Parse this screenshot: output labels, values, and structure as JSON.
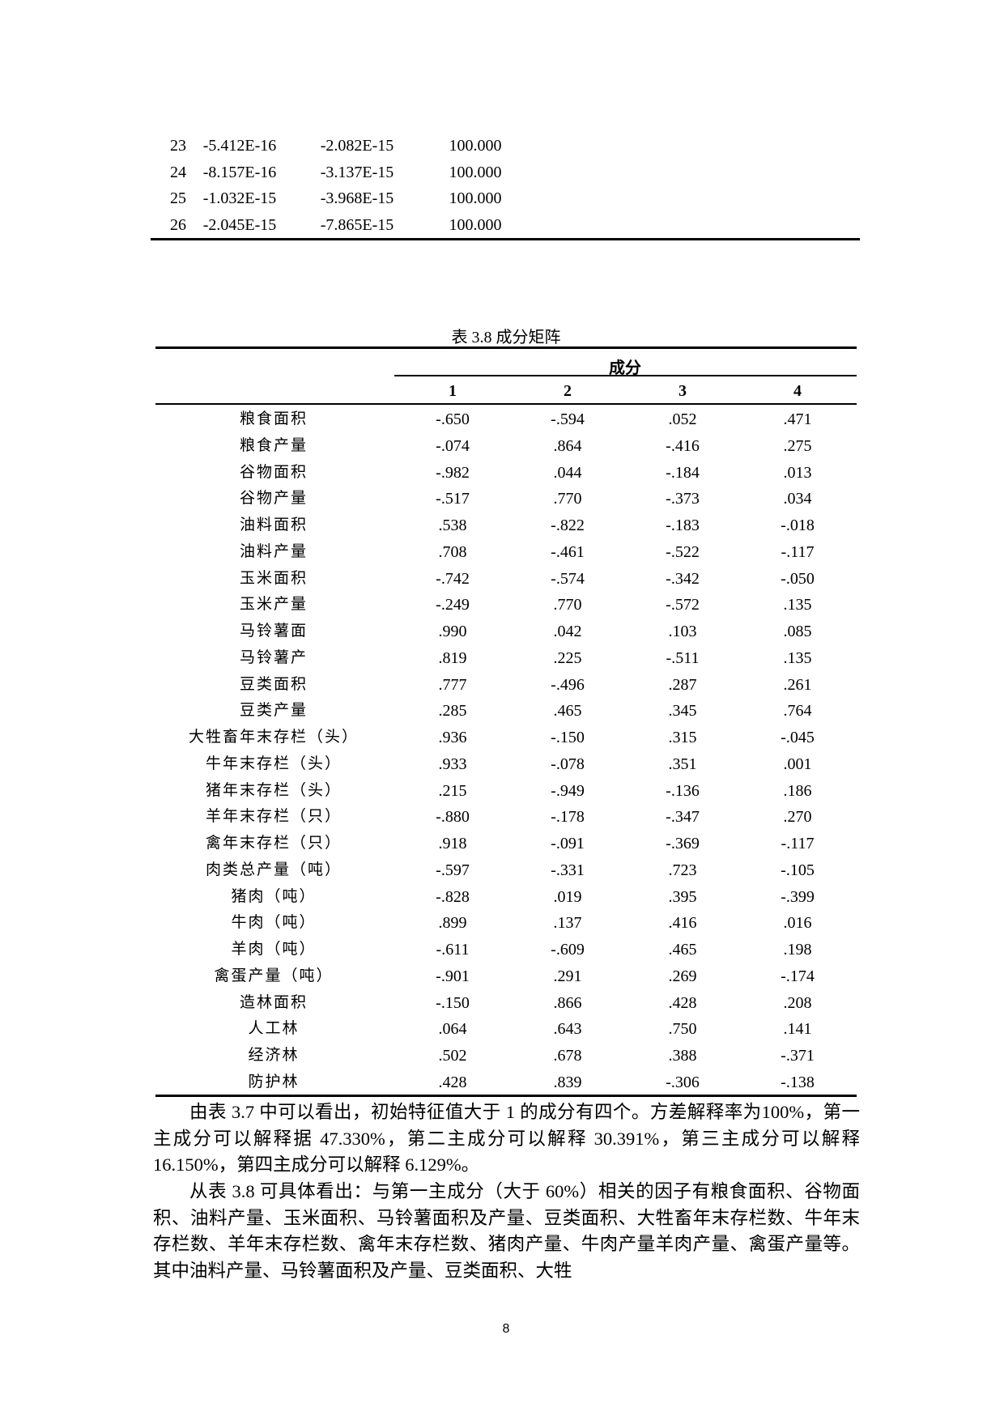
{
  "previous_table": {
    "rows": [
      [
        "23",
        "-5.412E-16",
        "-2.082E-15",
        "100.000"
      ],
      [
        "24",
        "-8.157E-16",
        "-3.137E-15",
        "100.000"
      ],
      [
        "25",
        "-1.032E-15",
        "-3.968E-15",
        "100.000"
      ],
      [
        "26",
        "-2.045E-15",
        "-7.865E-15",
        "100.000"
      ]
    ]
  },
  "table": {
    "caption": "表 3.8  成分矩阵",
    "group_header": "成分",
    "columns": [
      "1",
      "2",
      "3",
      "4"
    ],
    "rows": [
      {
        "label": "粮食面积",
        "values": [
          "-.650",
          "-.594",
          ".052",
          ".471"
        ]
      },
      {
        "label": "粮食产量",
        "values": [
          "-.074",
          ".864",
          "-.416",
          ".275"
        ]
      },
      {
        "label": "谷物面积",
        "values": [
          "-.982",
          ".044",
          "-.184",
          ".013"
        ]
      },
      {
        "label": "谷物产量",
        "values": [
          "-.517",
          ".770",
          "-.373",
          ".034"
        ]
      },
      {
        "label": "油料面积",
        "values": [
          ".538",
          "-.822",
          "-.183",
          "-.018"
        ]
      },
      {
        "label": "油料产量",
        "values": [
          ".708",
          "-.461",
          "-.522",
          "-.117"
        ]
      },
      {
        "label": "玉米面积",
        "values": [
          "-.742",
          "-.574",
          "-.342",
          "-.050"
        ]
      },
      {
        "label": "玉米产量",
        "values": [
          "-.249",
          ".770",
          "-.572",
          ".135"
        ]
      },
      {
        "label": "马铃薯面",
        "values": [
          ".990",
          ".042",
          ".103",
          ".085"
        ]
      },
      {
        "label": "马铃薯产",
        "values": [
          ".819",
          ".225",
          "-.511",
          ".135"
        ]
      },
      {
        "label": "豆类面积",
        "values": [
          ".777",
          "-.496",
          ".287",
          ".261"
        ]
      },
      {
        "label": "豆类产量",
        "values": [
          ".285",
          ".465",
          ".345",
          ".764"
        ]
      },
      {
        "label": "大牲畜年末存栏（头）",
        "values": [
          ".936",
          "-.150",
          ".315",
          "-.045"
        ]
      },
      {
        "label": "牛年末存栏（头）",
        "values": [
          ".933",
          "-.078",
          ".351",
          ".001"
        ]
      },
      {
        "label": "猪年末存栏（头）",
        "values": [
          ".215",
          "-.949",
          "-.136",
          ".186"
        ]
      },
      {
        "label": "羊年末存栏（只）",
        "values": [
          "-.880",
          "-.178",
          "-.347",
          ".270"
        ]
      },
      {
        "label": "禽年末存栏（只）",
        "values": [
          ".918",
          "-.091",
          "-.369",
          "-.117"
        ]
      },
      {
        "label": "肉类总产量（吨）",
        "values": [
          "-.597",
          "-.331",
          ".723",
          "-.105"
        ]
      },
      {
        "label": "猪肉（吨）",
        "values": [
          "-.828",
          ".019",
          ".395",
          "-.399"
        ]
      },
      {
        "label": "牛肉（吨）",
        "values": [
          ".899",
          ".137",
          ".416",
          ".016"
        ]
      },
      {
        "label": "羊肉（吨）",
        "values": [
          "-.611",
          "-.609",
          ".465",
          ".198"
        ]
      },
      {
        "label": "禽蛋产量（吨）",
        "values": [
          "-.901",
          ".291",
          ".269",
          "-.174"
        ]
      },
      {
        "label": "造林面积",
        "values": [
          "-.150",
          ".866",
          ".428",
          ".208"
        ]
      },
      {
        "label": "人工林",
        "values": [
          ".064",
          ".643",
          ".750",
          ".141"
        ]
      },
      {
        "label": "经济林",
        "values": [
          ".502",
          ".678",
          ".388",
          "-.371"
        ]
      },
      {
        "label": "防护林",
        "values": [
          ".428",
          ".839",
          "-.306",
          "-.138"
        ]
      }
    ]
  },
  "body": {
    "paragraphs": [
      "由表 3.7 中可以看出，初始特征值大于 1 的成分有四个。方差解释率为100%，第一主成分可以解释据 47.330%，第二主成分可以解释 30.391%，第三主成分可以解释 16.150%，第四主成分可以解释 6.129%。",
      "从表 3.8 可具体看出：与第一主成分（大于 60%）相关的因子有粮食面积、谷物面积、油料产量、玉米面积、马铃薯面积及产量、豆类面积、大牲畜年末存栏数、牛年末存栏数、羊年末存栏数、禽年末存栏数、猪肉产量、牛肉产量羊肉产量、禽蛋产量等。其中油料产量、马铃薯面积及产量、豆类面积、大牲"
    ]
  },
  "page_number": "8"
}
